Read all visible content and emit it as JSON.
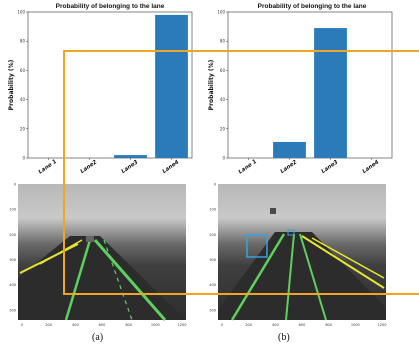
{
  "figure": {
    "panels": [
      {
        "id": "a",
        "chart_title": "Probability of belonging to the lane",
        "caption": "(a)",
        "photo_y_ticks": [
          "0",
          "100",
          "200",
          "300",
          "400",
          "500"
        ],
        "photo_x_ticks": [
          "0",
          "200",
          "400",
          "600",
          "800",
          "1000",
          "1200"
        ]
      },
      {
        "id": "b",
        "chart_title": "Probability of belonging to the lane",
        "caption": "(b)",
        "photo_y_ticks": [
          "0",
          "100",
          "200",
          "300",
          "400",
          "500"
        ],
        "photo_x_ticks": [
          "0",
          "200",
          "400",
          "600",
          "800",
          "1000",
          "1200"
        ]
      }
    ],
    "colors": {
      "bar": "#2b7bba",
      "annotation": "#f0a623",
      "lane_yellow": "#e6e62e",
      "lane_green": "#5fcf5f",
      "box": "#3aa0e0"
    }
  },
  "chart_data": [
    {
      "type": "bar",
      "title": "Probability of belonging to the lane",
      "ylabel": "Probability (%)",
      "xlabel": "",
      "categories": [
        "Lane 1",
        "Lane2",
        "Lane3",
        "Lane4"
      ],
      "values": [
        0,
        0,
        2,
        98
      ],
      "yticks": [
        0,
        20,
        40,
        60,
        80,
        100
      ],
      "ylim": [
        0,
        100
      ]
    },
    {
      "type": "bar",
      "title": "Probability of belonging to the lane",
      "ylabel": "Probability (%)",
      "xlabel": "",
      "categories": [
        "Lane 1",
        "Lane2",
        "Lane3",
        "Lane4"
      ],
      "values": [
        0,
        11,
        89,
        0
      ],
      "yticks": [
        0,
        20,
        40,
        60,
        80,
        100
      ],
      "ylim": [
        0,
        100
      ]
    }
  ]
}
